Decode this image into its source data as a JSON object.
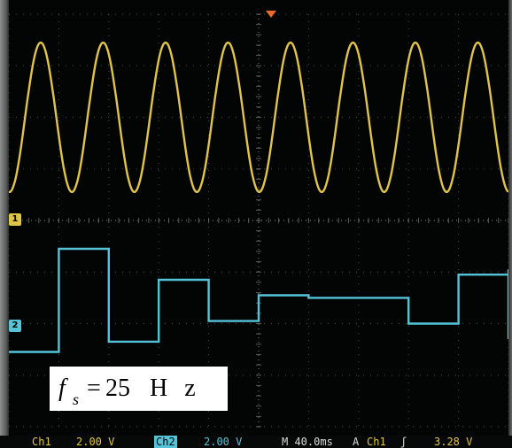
{
  "status_bar": {
    "ch1_label": "Ch1",
    "ch1_scale": "2.00 V",
    "ch2_label": "Ch2",
    "ch2_scale": "2.00 V",
    "timebase": "M 40.0ms",
    "acq_mode": "A",
    "trigger_source": "Ch1",
    "trigger_slope": "ʃ",
    "trigger_level": "3.28 V"
  },
  "markers": {
    "ch1": "1",
    "ch2": "2"
  },
  "annotation": {
    "symbol": "f",
    "subscript": "s",
    "equals": "=",
    "value": "25",
    "unit": "H z"
  },
  "colors": {
    "ch1": "#e0c44a",
    "ch2": "#55c4d8",
    "grid": "#7a7e7e",
    "trigger": "#ea6a28"
  },
  "chart_data": {
    "type": "line",
    "title": "",
    "series": [
      {
        "name": "Ch1",
        "kind": "sine",
        "frequency_hz": 20,
        "amplitude_divisions": 1.45,
        "offset_divisions": 2.0
      },
      {
        "name": "Ch2",
        "kind": "sample-and-hold",
        "sample_rate_hz": 25,
        "steps_divisions": [
          -1.1,
          0.9,
          -0.9,
          0.3,
          -0.5,
          0.0,
          -0.05,
          -0.05,
          -0.55,
          0.4,
          -0.85,
          0.5
        ]
      }
    ],
    "time_per_division_ms": 40,
    "volts_per_division": 2.0,
    "divisions_x": 10,
    "divisions_y": 8,
    "grid": true
  }
}
